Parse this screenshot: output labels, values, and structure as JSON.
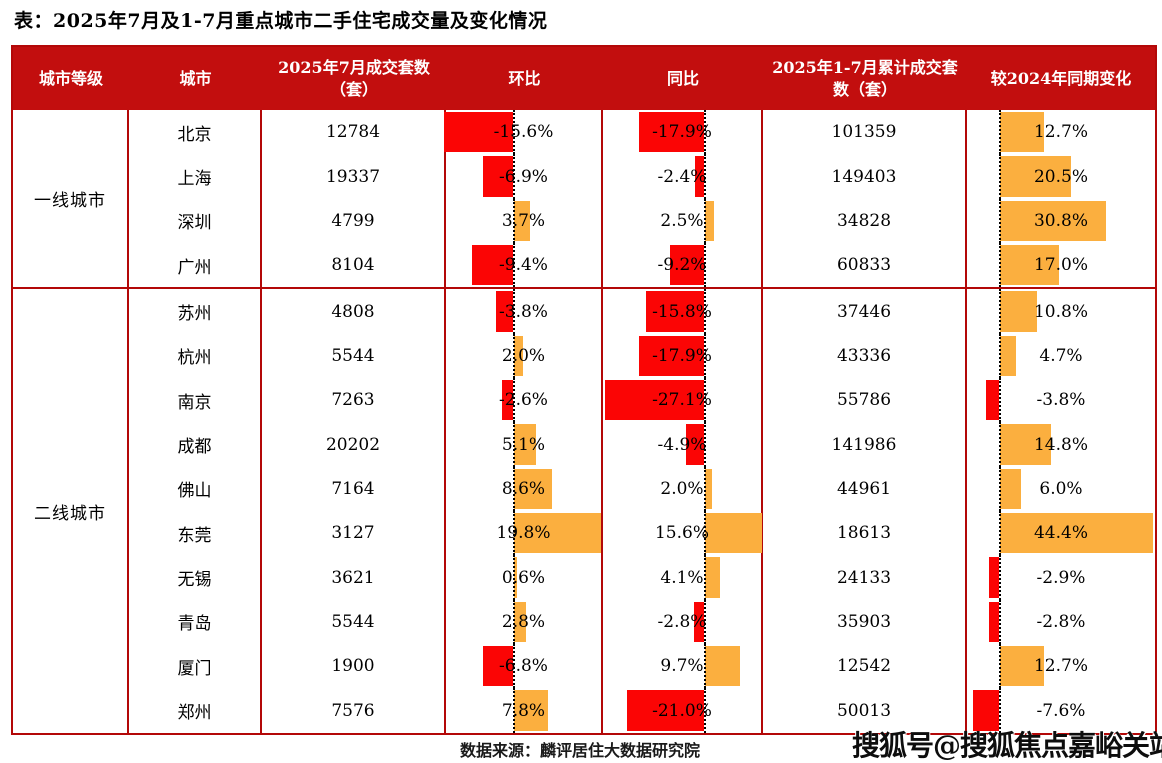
{
  "title": "表：2025年7月及1-7月重点城市二手住宅成交量及变化情况",
  "footer": {
    "source": "数据来源：麟评居住大数据研究院",
    "watermark": "搜狐号@搜狐焦点嘉峪关站"
  },
  "colors": {
    "header_bg": "#C20E0E",
    "table_border": "#B30808",
    "bar_positive": "#FBAF3F",
    "bar_negative": "#FB0505",
    "header_text": "#FFFFFF"
  },
  "chart_data": {
    "type": "table",
    "title": "表：2025年7月及1-7月重点城市二手住宅成交量及变化情况",
    "columns": [
      "城市等级",
      "城市",
      "2025年7月成交套数（套）",
      "环比",
      "同比",
      "2025年1-7月累计成交套数（套）",
      "较2024年同期变化"
    ],
    "bar_columns": [
      "环比",
      "同比",
      "较2024年同期变化"
    ],
    "legend_note": "负值为红色左向条，正值为橙色右向条",
    "sections": [
      {
        "tier": "一线城市",
        "rows": [
          {
            "city": "北京",
            "jul_sales": 12784,
            "mom_pct": -15.6,
            "yoy_pct": -17.9,
            "cum_sales": 101359,
            "chg_pct": 12.7
          },
          {
            "city": "上海",
            "jul_sales": 19337,
            "mom_pct": -6.9,
            "yoy_pct": -2.4,
            "cum_sales": 149403,
            "chg_pct": 20.5
          },
          {
            "city": "深圳",
            "jul_sales": 4799,
            "mom_pct": 3.7,
            "yoy_pct": 2.5,
            "cum_sales": 34828,
            "chg_pct": 30.8
          },
          {
            "city": "广州",
            "jul_sales": 8104,
            "mom_pct": -9.4,
            "yoy_pct": -9.2,
            "cum_sales": 60833,
            "chg_pct": 17.0
          }
        ]
      },
      {
        "tier": "二线城市",
        "rows": [
          {
            "city": "苏州",
            "jul_sales": 4808,
            "mom_pct": -3.8,
            "yoy_pct": -15.8,
            "cum_sales": 37446,
            "chg_pct": 10.8
          },
          {
            "city": "杭州",
            "jul_sales": 5544,
            "mom_pct": 2.0,
            "yoy_pct": -17.9,
            "cum_sales": 43336,
            "chg_pct": 4.7
          },
          {
            "city": "南京",
            "jul_sales": 7263,
            "mom_pct": -2.6,
            "yoy_pct": -27.1,
            "cum_sales": 55786,
            "chg_pct": -3.8
          },
          {
            "city": "成都",
            "jul_sales": 20202,
            "mom_pct": 5.1,
            "yoy_pct": -4.9,
            "cum_sales": 141986,
            "chg_pct": 14.8
          },
          {
            "city": "佛山",
            "jul_sales": 7164,
            "mom_pct": 8.6,
            "yoy_pct": 2.0,
            "cum_sales": 44961,
            "chg_pct": 6.0
          },
          {
            "city": "东莞",
            "jul_sales": 3127,
            "mom_pct": 19.8,
            "yoy_pct": 15.6,
            "cum_sales": 18613,
            "chg_pct": 44.4
          },
          {
            "city": "无锡",
            "jul_sales": 3621,
            "mom_pct": 0.6,
            "yoy_pct": 4.1,
            "cum_sales": 24133,
            "chg_pct": -2.9
          },
          {
            "city": "青岛",
            "jul_sales": 5544,
            "mom_pct": 2.8,
            "yoy_pct": -2.8,
            "cum_sales": 35903,
            "chg_pct": -2.8
          },
          {
            "city": "厦门",
            "jul_sales": 1900,
            "mom_pct": -6.8,
            "yoy_pct": 9.7,
            "cum_sales": 12542,
            "chg_pct": 12.7
          },
          {
            "city": "郑州",
            "jul_sales": 7576,
            "mom_pct": 7.8,
            "yoy_pct": -21.0,
            "cum_sales": 50013,
            "chg_pct": -7.6
          }
        ]
      }
    ]
  }
}
